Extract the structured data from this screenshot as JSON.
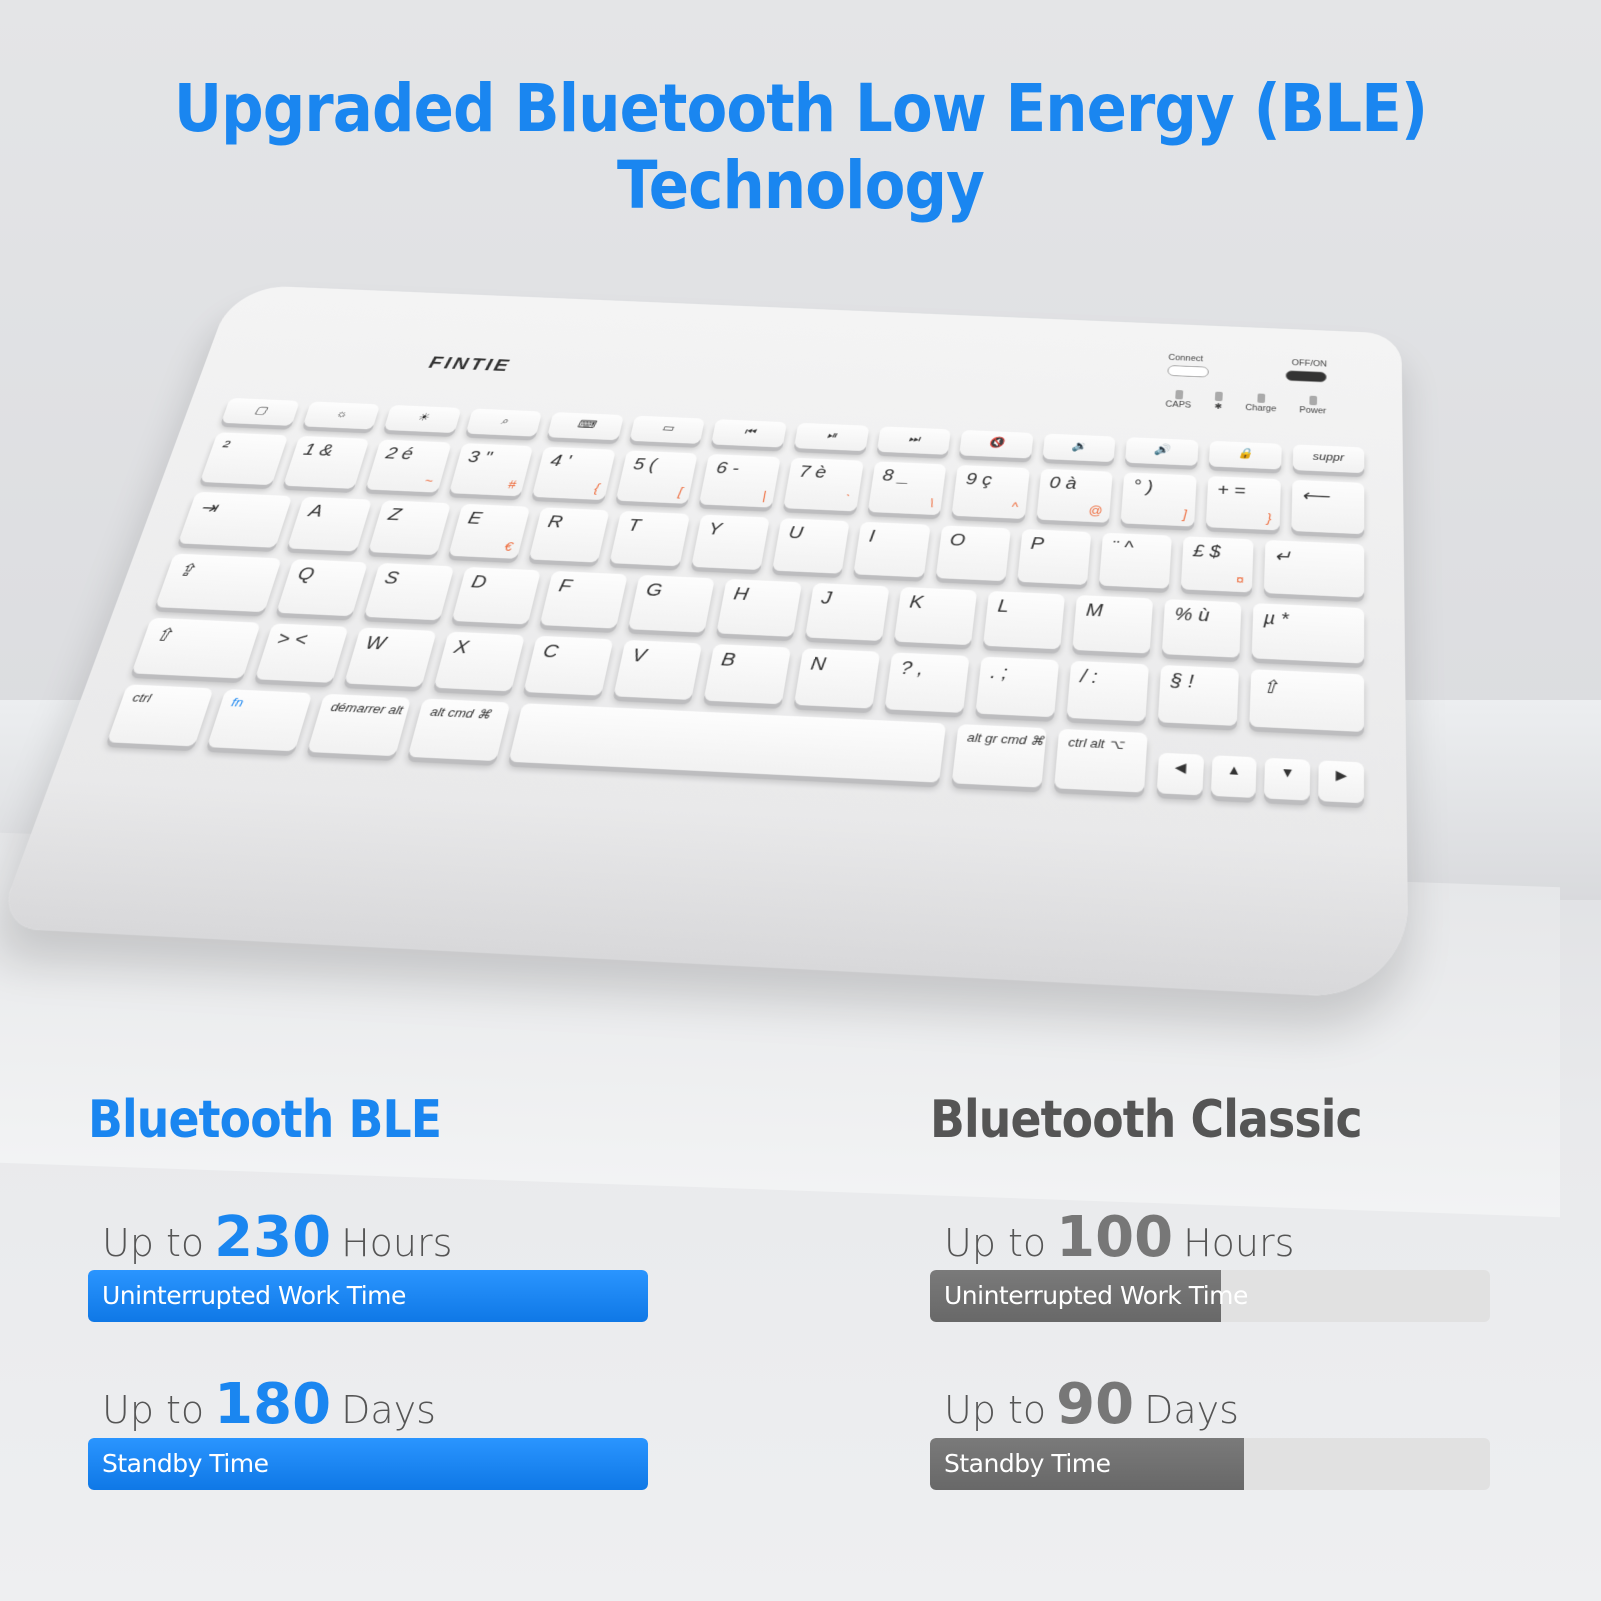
{
  "title": "Upgraded Bluetooth Low Energy (BLE) Technology",
  "colors": {
    "ble": "#1a86f0",
    "classic": "#6e6e6e",
    "track": "#e1e1e1"
  },
  "keyboard": {
    "brand": "FINTIE",
    "controls": {
      "connect": "Connect",
      "power_switch": "OFF/ON",
      "leds": [
        "CAPS",
        "✱",
        "Charge",
        "Power"
      ]
    },
    "fn_row": [
      "▢",
      "☼",
      "☀",
      "⌕",
      "⌨",
      "▭",
      "⏮",
      "⏯",
      "⏭",
      "🔇",
      "🔉",
      "🔊",
      "🔒",
      "suppr"
    ],
    "rows": [
      [
        [
          "²",
          ""
        ],
        [
          "1 &",
          ""
        ],
        [
          "2 é",
          "~"
        ],
        [
          "3 \"",
          "#"
        ],
        [
          "4 '",
          "{"
        ],
        [
          "5 (",
          "["
        ],
        [
          "6 -",
          "|"
        ],
        [
          "7 è",
          "`"
        ],
        [
          "8 _",
          "\\"
        ],
        [
          "9 ç",
          "^"
        ],
        [
          "0 à",
          "@"
        ],
        [
          "° )",
          "]"
        ],
        [
          "+ =",
          "}"
        ],
        [
          "⟵",
          ""
        ]
      ],
      [
        [
          "⇥",
          ""
        ],
        [
          "A",
          ""
        ],
        [
          "Z",
          ""
        ],
        [
          "E",
          "€"
        ],
        [
          "R",
          ""
        ],
        [
          "T",
          ""
        ],
        [
          "Y",
          ""
        ],
        [
          "U",
          ""
        ],
        [
          "I",
          ""
        ],
        [
          "O",
          ""
        ],
        [
          "P",
          ""
        ],
        [
          "¨ ^",
          ""
        ],
        [
          "£ $",
          "¤"
        ],
        [
          "↵",
          ""
        ]
      ],
      [
        [
          "⇪",
          ""
        ],
        [
          "Q",
          ""
        ],
        [
          "S",
          ""
        ],
        [
          "D",
          ""
        ],
        [
          "F",
          ""
        ],
        [
          "G",
          ""
        ],
        [
          "H",
          ""
        ],
        [
          "J",
          ""
        ],
        [
          "K",
          ""
        ],
        [
          "L",
          ""
        ],
        [
          "M",
          ""
        ],
        [
          "% ù",
          ""
        ],
        [
          "µ *",
          ""
        ]
      ],
      [
        [
          "⇧",
          ""
        ],
        [
          "> <",
          ""
        ],
        [
          "W",
          ""
        ],
        [
          "X",
          ""
        ],
        [
          "C",
          ""
        ],
        [
          "V",
          ""
        ],
        [
          "B",
          ""
        ],
        [
          "N",
          ""
        ],
        [
          "? ,",
          ""
        ],
        [
          ". ;",
          ""
        ],
        [
          "/ :",
          ""
        ],
        [
          "§ !",
          ""
        ],
        [
          "⇧",
          ""
        ]
      ]
    ],
    "bottom": {
      "ctrl": "ctrl",
      "fn": "fn",
      "start": "démarrer alt ⌥",
      "alt_cmd": "alt cmd ⌘",
      "altgr": "alt gr cmd ⌘",
      "ctrl_alt": "ctrl alt ⌥",
      "arrows": [
        "◀",
        "▲",
        "▼",
        "▶"
      ]
    }
  },
  "ble": {
    "heading": "Bluetooth BLE",
    "work": {
      "prefix": "Up to",
      "value": "230",
      "unit": "Hours",
      "label": "Uninterrupted Work Time",
      "fill": 1.0
    },
    "standby": {
      "prefix": "Up to",
      "value": "180",
      "unit": "Days",
      "label": "Standby Time",
      "fill": 1.0
    }
  },
  "classic": {
    "heading": "Bluetooth Classic",
    "work": {
      "prefix": "Up to",
      "value": "100",
      "unit": "Hours",
      "label": "Uninterrupted Work Time",
      "fill": 0.52
    },
    "standby": {
      "prefix": "Up to",
      "value": "90",
      "unit": "Days",
      "label": "Standby Time",
      "fill": 0.56
    }
  }
}
